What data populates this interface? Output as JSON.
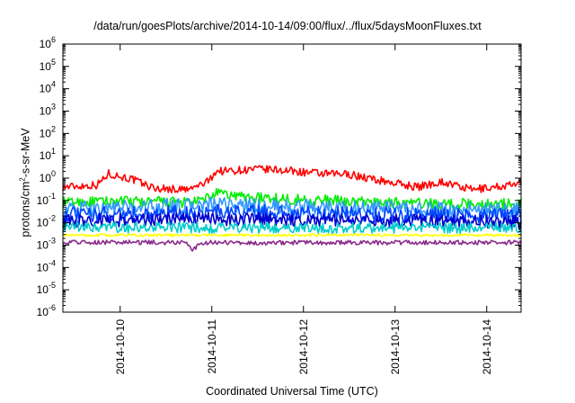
{
  "chart_data": {
    "type": "line",
    "title": "/data/run/goesPlots/archive/2014-10-14/09:00/flux/../flux/5daysMoonFluxes.txt",
    "xlabel": "Coordinated Universal Time (UTC)",
    "ylabel": {
      "prefix": "protons/cm",
      "sup": "2",
      "suffix": "-s-sr-MeV"
    },
    "xlim": [
      "2014-10-09T09:00",
      "2014-10-14T09:00"
    ],
    "ylim": [
      1e-06,
      1000000.0
    ],
    "yscale": "log",
    "grid": false,
    "legend": "none",
    "x_ticks": [
      "2014-10-10",
      "2014-10-11",
      "2014-10-12",
      "2014-10-13",
      "2014-10-14"
    ],
    "y_ticks": [
      {
        "base": "10",
        "exp": "-6"
      },
      {
        "base": "10",
        "exp": "-5"
      },
      {
        "base": "10",
        "exp": "-4"
      },
      {
        "base": "10",
        "exp": "-3"
      },
      {
        "base": "10",
        "exp": "-2"
      },
      {
        "base": "10",
        "exp": "-1"
      },
      {
        "base": "10",
        "exp": "0"
      },
      {
        "base": "10",
        "exp": "1"
      },
      {
        "base": "10",
        "exp": "2"
      },
      {
        "base": "10",
        "exp": "3"
      },
      {
        "base": "10",
        "exp": "4"
      },
      {
        "base": "10",
        "exp": "5"
      },
      {
        "base": "10",
        "exp": "6"
      }
    ],
    "series": [
      {
        "color": "#ff0000",
        "noise": 0.18,
        "points": [
          [
            "2014-10-09T09:00",
            0.4
          ],
          [
            "2014-10-09T18:00",
            0.5
          ],
          [
            "2014-10-09T21:00",
            1.6
          ],
          [
            "2014-10-10T03:00",
            0.9
          ],
          [
            "2014-10-10T09:00",
            0.35
          ],
          [
            "2014-10-10T18:00",
            0.3
          ],
          [
            "2014-10-10T23:00",
            0.7
          ],
          [
            "2014-10-11T01:00",
            2.0
          ],
          [
            "2014-10-11T12:00",
            2.5
          ],
          [
            "2014-10-11T18:00",
            2.3
          ],
          [
            "2014-10-12T06:00",
            1.5
          ],
          [
            "2014-10-12T12:00",
            1.5
          ],
          [
            "2014-10-12T18:00",
            0.9
          ],
          [
            "2014-10-13T06:00",
            0.4
          ],
          [
            "2014-10-13T12:00",
            0.7
          ],
          [
            "2014-10-13T20:00",
            0.3
          ],
          [
            "2014-10-14T02:00",
            0.4
          ],
          [
            "2014-10-14T09:00",
            0.55
          ]
        ]
      },
      {
        "color": "#00ee00",
        "noise": 0.25,
        "points": [
          [
            "2014-10-09T09:00",
            0.08
          ],
          [
            "2014-10-10T00:00",
            0.09
          ],
          [
            "2014-10-10T20:00",
            0.08
          ],
          [
            "2014-10-11T01:00",
            0.2
          ],
          [
            "2014-10-11T12:00",
            0.13
          ],
          [
            "2014-10-12T12:00",
            0.09
          ],
          [
            "2014-10-13T12:00",
            0.07
          ],
          [
            "2014-10-14T09:00",
            0.07
          ]
        ]
      },
      {
        "color": "#3399ff",
        "noise": 0.35,
        "points": [
          [
            "2014-10-09T09:00",
            0.04
          ],
          [
            "2014-10-11T01:00",
            0.06
          ],
          [
            "2014-10-12T12:00",
            0.045
          ],
          [
            "2014-10-14T09:00",
            0.035
          ]
        ]
      },
      {
        "color": "#0044ff",
        "noise": 0.35,
        "points": [
          [
            "2014-10-09T09:00",
            0.022
          ],
          [
            "2014-10-11T01:00",
            0.03
          ],
          [
            "2014-10-12T12:00",
            0.025
          ],
          [
            "2014-10-14T09:00",
            0.02
          ]
        ]
      },
      {
        "color": "#0000cc",
        "noise": 0.3,
        "points": [
          [
            "2014-10-09T09:00",
            0.012
          ],
          [
            "2014-10-11T01:00",
            0.015
          ],
          [
            "2014-10-12T12:00",
            0.013
          ],
          [
            "2014-10-14T09:00",
            0.011
          ]
        ]
      },
      {
        "color": "#00cccc",
        "noise": 0.25,
        "points": [
          [
            "2014-10-09T09:00",
            0.006
          ],
          [
            "2014-10-14T09:00",
            0.006
          ]
        ]
      },
      {
        "color": "#ffff00",
        "noise": 0.06,
        "points": [
          [
            "2014-10-09T09:00",
            0.0028
          ],
          [
            "2014-10-14T09:00",
            0.0028
          ]
        ]
      },
      {
        "color": "#8b2a8b",
        "noise": 0.1,
        "points": [
          [
            "2014-10-09T09:00",
            0.0014
          ],
          [
            "2014-10-10T17:00",
            0.0013
          ],
          [
            "2014-10-10T19:00",
            0.0006
          ],
          [
            "2014-10-10T21:00",
            0.0013
          ],
          [
            "2014-10-14T09:00",
            0.0013
          ]
        ]
      }
    ]
  }
}
